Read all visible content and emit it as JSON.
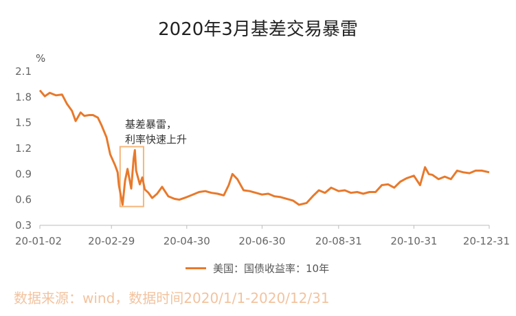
{
  "title": "2020年3月基差交易暴雷",
  "unit": "%",
  "annotation": {
    "line1": "基差暴雷，",
    "line2": "利率快速上升"
  },
  "source": "数据来源：wind，数据时间2020/1/1-2020/12/31",
  "colors": {
    "line": "#E8792B",
    "highlight_box": "#F5B57A",
    "axis": "#BBBBBB",
    "source_text": "#F2C39F"
  },
  "chart_data": {
    "type": "line",
    "title": "2020年3月基差交易暴雷",
    "ylabel": "%",
    "xlabel": "",
    "ylim": [
      0.3,
      2.1
    ],
    "yticks": [
      "2.1",
      "1.8",
      "1.5",
      "1.2",
      "0.9",
      "0.6",
      "0.3"
    ],
    "xticks": [
      "20-01-02",
      "20-02-29",
      "20-04-30",
      "20-06-30",
      "20-08-31",
      "20-10-31",
      "20-12-31"
    ],
    "grid": false,
    "legend_position": "bottom-center",
    "series": [
      {
        "name": "美国：国债收益率：10年",
        "x": [
          "2020-01-02",
          "2020-01-06",
          "2020-01-10",
          "2020-01-15",
          "2020-01-20",
          "2020-01-24",
          "2020-01-28",
          "2020-01-31",
          "2020-02-04",
          "2020-02-07",
          "2020-02-11",
          "2020-02-14",
          "2020-02-18",
          "2020-02-21",
          "2020-02-25",
          "2020-02-28",
          "2020-03-03",
          "2020-03-05",
          "2020-03-06",
          "2020-03-09",
          "2020-03-11",
          "2020-03-13",
          "2020-03-16",
          "2020-03-18",
          "2020-03-19",
          "2020-03-20",
          "2020-03-23",
          "2020-03-25",
          "2020-03-27",
          "2020-03-30",
          "2020-04-02",
          "2020-04-06",
          "2020-04-10",
          "2020-04-15",
          "2020-04-20",
          "2020-04-24",
          "2020-04-30",
          "2020-05-05",
          "2020-05-10",
          "2020-05-15",
          "2020-05-20",
          "2020-05-25",
          "2020-05-30",
          "2020-06-03",
          "2020-06-06",
          "2020-06-10",
          "2020-06-15",
          "2020-06-20",
          "2020-06-25",
          "2020-06-30",
          "2020-07-05",
          "2020-07-10",
          "2020-07-15",
          "2020-07-20",
          "2020-07-25",
          "2020-07-30",
          "2020-08-05",
          "2020-08-10",
          "2020-08-15",
          "2020-08-20",
          "2020-08-25",
          "2020-08-31",
          "2020-09-05",
          "2020-09-10",
          "2020-09-15",
          "2020-09-20",
          "2020-09-25",
          "2020-09-30",
          "2020-10-05",
          "2020-10-10",
          "2020-10-15",
          "2020-10-20",
          "2020-10-25",
          "2020-10-31",
          "2020-11-05",
          "2020-11-09",
          "2020-11-12",
          "2020-11-15",
          "2020-11-20",
          "2020-11-25",
          "2020-11-30",
          "2020-12-05",
          "2020-12-10",
          "2020-12-15",
          "2020-12-20",
          "2020-12-25",
          "2020-12-31"
        ],
        "values": [
          1.88,
          1.81,
          1.85,
          1.82,
          1.83,
          1.72,
          1.64,
          1.52,
          1.62,
          1.58,
          1.59,
          1.59,
          1.56,
          1.47,
          1.33,
          1.13,
          1.0,
          0.92,
          0.77,
          0.54,
          0.82,
          0.96,
          0.73,
          1.08,
          1.18,
          0.94,
          0.78,
          0.86,
          0.72,
          0.68,
          0.62,
          0.67,
          0.75,
          0.64,
          0.61,
          0.6,
          0.63,
          0.66,
          0.69,
          0.7,
          0.68,
          0.67,
          0.65,
          0.77,
          0.9,
          0.84,
          0.71,
          0.7,
          0.68,
          0.66,
          0.67,
          0.64,
          0.63,
          0.61,
          0.59,
          0.54,
          0.56,
          0.64,
          0.71,
          0.68,
          0.74,
          0.7,
          0.71,
          0.68,
          0.69,
          0.67,
          0.69,
          0.69,
          0.77,
          0.78,
          0.74,
          0.81,
          0.85,
          0.88,
          0.77,
          0.98,
          0.9,
          0.89,
          0.84,
          0.87,
          0.84,
          0.94,
          0.92,
          0.91,
          0.94,
          0.94,
          0.92
        ]
      }
    ]
  }
}
